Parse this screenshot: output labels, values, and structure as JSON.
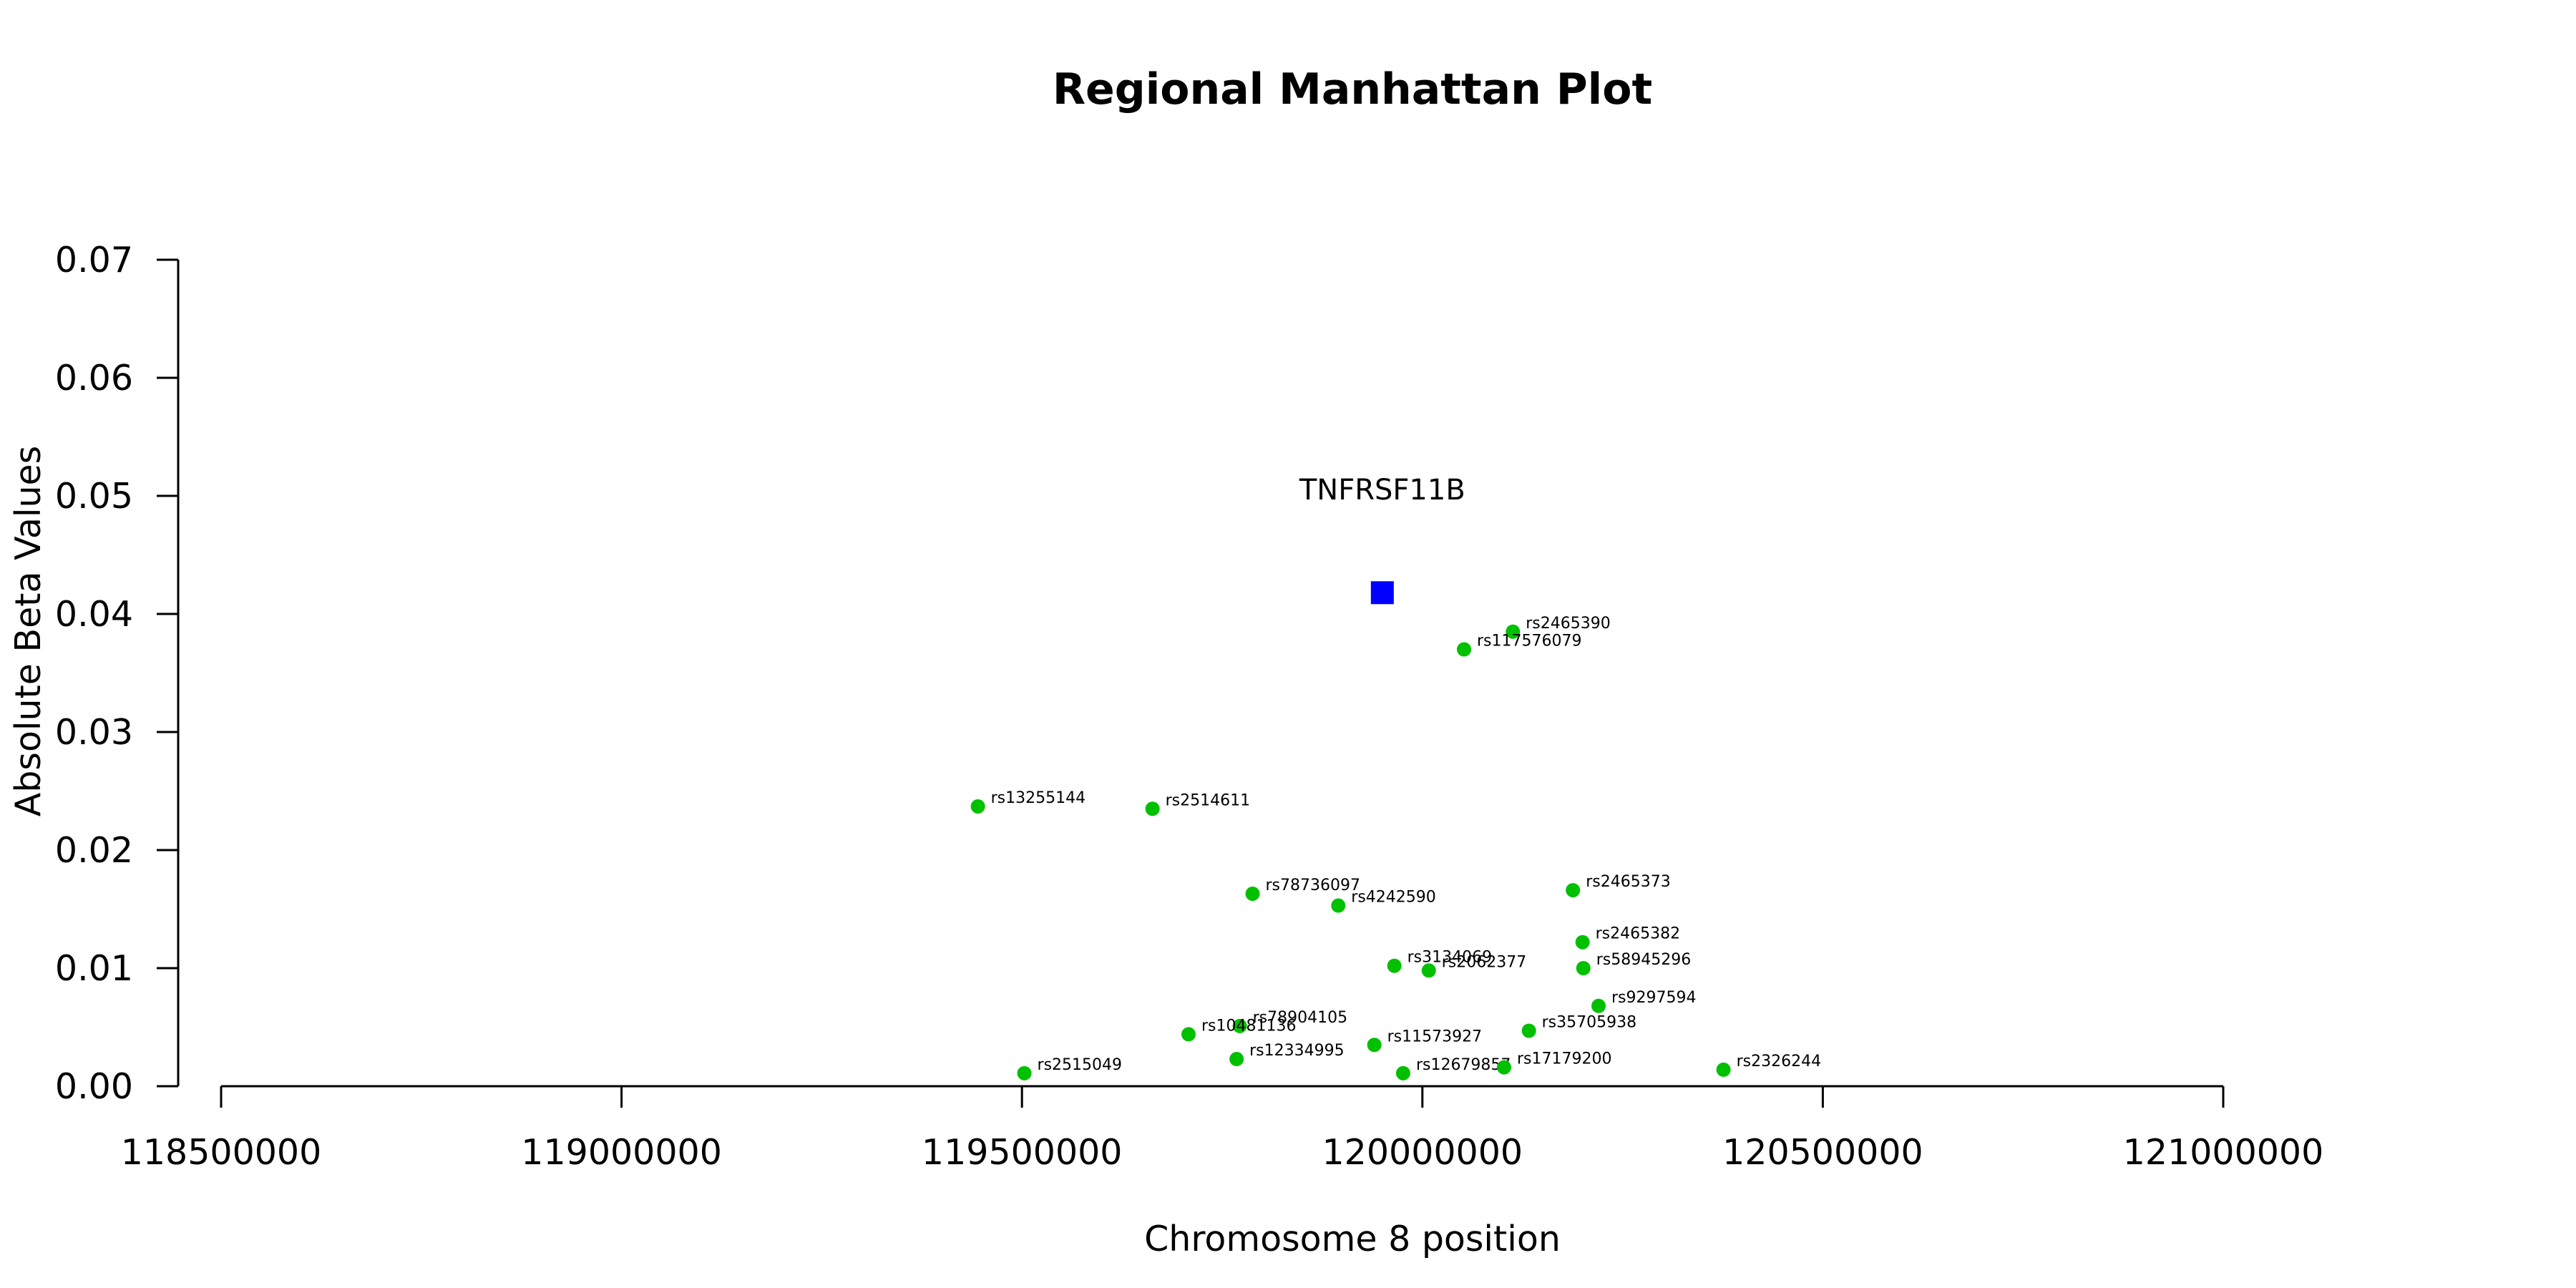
{
  "chart_data": {
    "type": "scatter",
    "title": "Regional Manhattan Plot",
    "xlabel": "Chromosome 8 position",
    "ylabel": "Absolute Beta Values",
    "xlim": [
      118500000,
      121000000
    ],
    "ylim": [
      0,
      0.07
    ],
    "x_ticks": [
      "118500000",
      "119000000",
      "119500000",
      "120000000",
      "120500000",
      "121000000"
    ],
    "y_ticks": [
      "0.00",
      "0.01",
      "0.02",
      "0.03",
      "0.04",
      "0.05",
      "0.06",
      "0.07"
    ],
    "grid": false,
    "colors": {
      "snp": "#00c000",
      "gene": "#0000ff"
    },
    "gene": {
      "label": "TNFRSF11B",
      "x": 119950000,
      "y": 0.0418
    },
    "snps": [
      {
        "label": "rs2465390",
        "x": 120113000,
        "y": 0.0385
      },
      {
        "label": "rs117576079",
        "x": 120052000,
        "y": 0.037
      },
      {
        "label": "rs13255144",
        "x": 119445000,
        "y": 0.0237
      },
      {
        "label": "rs2514611",
        "x": 119663000,
        "y": 0.0235
      },
      {
        "label": "rs78736097",
        "x": 119788000,
        "y": 0.0163
      },
      {
        "label": "rs4242590",
        "x": 119895000,
        "y": 0.0153
      },
      {
        "label": "rs2465373",
        "x": 120188000,
        "y": 0.0166
      },
      {
        "label": "rs2465382",
        "x": 120200000,
        "y": 0.0122
      },
      {
        "label": "rs3134069",
        "x": 119965000,
        "y": 0.0102
      },
      {
        "label": "rs2062377",
        "x": 120008000,
        "y": 0.0098
      },
      {
        "label": "rs58945296",
        "x": 120201000,
        "y": 0.01
      },
      {
        "label": "rs9297594",
        "x": 120220000,
        "y": 0.0068
      },
      {
        "label": "rs78904105",
        "x": 119772000,
        "y": 0.0051
      },
      {
        "label": "rs10481136",
        "x": 119708000,
        "y": 0.0044
      },
      {
        "label": "rs35705938",
        "x": 120133000,
        "y": 0.0047
      },
      {
        "label": "rs11573927",
        "x": 119940000,
        "y": 0.0035
      },
      {
        "label": "rs12334995",
        "x": 119768000,
        "y": 0.0023
      },
      {
        "label": "rs2515049",
        "x": 119503000,
        "y": 0.0011
      },
      {
        "label": "rs12679857",
        "x": 119976000,
        "y": 0.0011
      },
      {
        "label": "rs17179200",
        "x": 120102000,
        "y": 0.0016
      },
      {
        "label": "rs2326244",
        "x": 120376000,
        "y": 0.0014
      }
    ]
  }
}
